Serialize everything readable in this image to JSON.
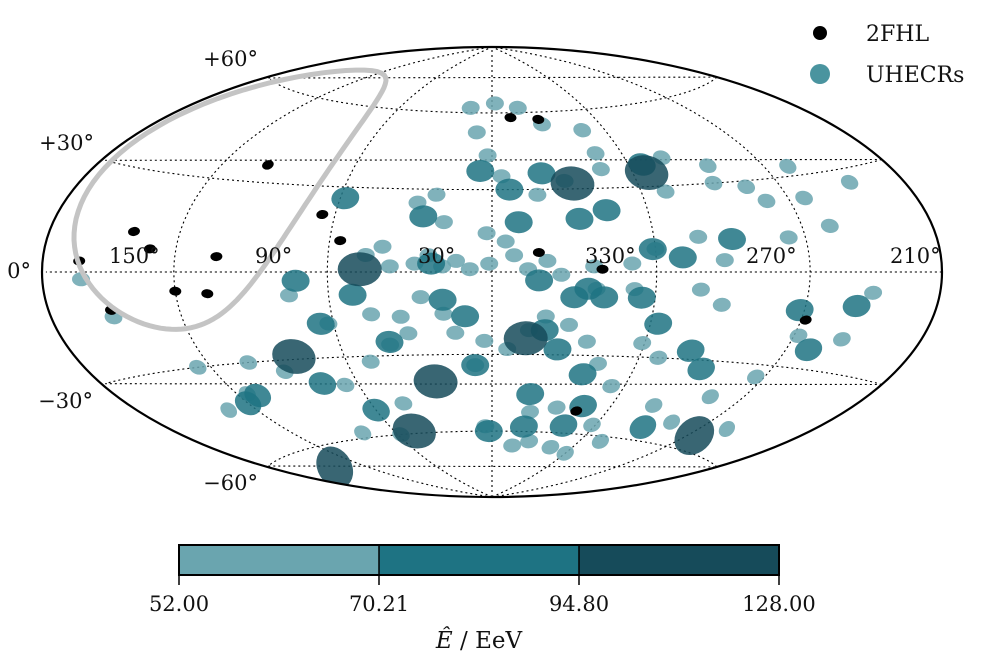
{
  "chart_data": {
    "type": "scatter",
    "projection": "hammer-aitoff",
    "coordinate_system": "galactic",
    "grid": true,
    "legend_placement": "top-right",
    "legend": [
      {
        "label": "2FHL",
        "color": "#000000"
      },
      {
        "label": "UHECRs",
        "color": "#4a949f"
      }
    ],
    "latitude_ticks": [
      "+60°",
      "+30°",
      "0°",
      "−30°",
      "−60°"
    ],
    "longitude_ticks": [
      "150°",
      "90°",
      "30°",
      "330°",
      "270°",
      "210°"
    ],
    "colorbar": {
      "label_main": "Ê",
      "label_unit": "/ EeV",
      "boundaries": [
        52.0,
        70.21,
        94.8,
        128.0
      ],
      "tick_labels": [
        "52.00",
        "70.21",
        "94.80",
        "128.00"
      ],
      "colors": [
        "#6aa5af",
        "#1e7383",
        "#164b5a"
      ]
    },
    "exposure_contour_color": "#c4c4c4",
    "series": [
      {
        "name": "2FHL",
        "color": "#000000",
        "points": [
          [
            140,
            12
          ],
          [
            99,
            36
          ],
          [
            65,
            20
          ],
          [
            56,
            11
          ],
          [
            103,
            5
          ],
          [
            131,
            7
          ],
          [
            162,
            3
          ],
          [
            120,
            -6
          ],
          [
            107,
            -7
          ],
          [
            150,
            -11
          ],
          [
            349,
            58
          ],
          [
            333,
            57
          ],
          [
            343,
            7
          ],
          [
            320,
            1
          ],
          [
            238,
            -15
          ],
          [
            316,
            -51
          ]
        ]
      },
      {
        "name": "UHECRs",
        "color": "#4a949f",
        "points": [
          [
            14,
            62,
            1
          ],
          [
            358,
            64,
            1
          ],
          [
            343,
            62,
            1
          ],
          [
            332,
            55,
            1
          ],
          [
            312,
            52,
            1
          ],
          [
            8,
            52,
            1
          ],
          [
            2,
            43,
            1
          ],
          [
            356,
            35,
            1
          ],
          [
            312,
            43,
            1
          ],
          [
            283,
            40,
            1
          ],
          [
            265,
            36,
            1
          ],
          [
            255,
            28,
            1
          ],
          [
            268,
            30,
            1
          ],
          [
            290,
            28,
            1
          ],
          [
            313,
            37,
            1
          ],
          [
            330,
            33,
            1
          ],
          [
            342,
            28,
            1
          ],
          [
            22,
            28,
            1
          ],
          [
            29,
            25,
            1
          ],
          [
            18,
            18,
            1
          ],
          [
            2,
            14,
            1
          ],
          [
            355,
            11,
            1
          ],
          [
            352,
            6,
            1
          ],
          [
            13,
            4,
            1
          ],
          [
            23,
            6,
            1
          ],
          [
            40,
            9,
            1
          ],
          [
            46,
            6,
            1
          ],
          [
            37,
            2,
            1
          ],
          [
            28,
            3,
            1
          ],
          [
            18,
            2,
            1
          ],
          [
            8,
            1,
            1
          ],
          [
            1,
            3,
            1
          ],
          [
            347,
            1,
            1
          ],
          [
            340,
            4,
            1
          ],
          [
            335,
            -1,
            1
          ],
          [
            323,
            2,
            1
          ],
          [
            322,
            -6,
            1
          ],
          [
            309,
            3,
            1
          ],
          [
            308,
            -6,
            1
          ],
          [
            300,
            8,
            1
          ],
          [
            283,
            12,
            1
          ],
          [
            274,
            4,
            1
          ],
          [
            283,
            -6,
            1
          ],
          [
            274,
            -11,
            1
          ],
          [
            247,
            11,
            1
          ],
          [
            228,
            14,
            1
          ],
          [
            218,
            -20,
            1
          ],
          [
            212,
            -6,
            1
          ],
          [
            207,
            26,
            1
          ],
          [
            229,
            33,
            1
          ],
          [
            233,
            23,
            1
          ],
          [
            250,
            23,
            1
          ],
          [
            45,
            -15,
            1
          ],
          [
            62,
            -18,
            1
          ],
          [
            75,
            -8,
            1
          ],
          [
            89,
            -34,
            1
          ],
          [
            102,
            -30,
            1
          ],
          [
            115,
            -40,
            1
          ],
          [
            126,
            -30,
            1
          ],
          [
            134,
            -44,
            1
          ],
          [
            66,
            -40,
            1
          ],
          [
            50,
            -32,
            1
          ],
          [
            40,
            -26,
            1
          ],
          [
            34,
            -16,
            1
          ],
          [
            32,
            -22,
            1
          ],
          [
            26,
            -9,
            1
          ],
          [
            18,
            -15,
            1
          ],
          [
            14,
            -22,
            1
          ],
          [
            7,
            -34,
            1
          ],
          [
            3,
            -25,
            1
          ],
          [
            354,
            -28,
            1
          ],
          [
            346,
            -21,
            1
          ],
          [
            340,
            -16,
            1
          ],
          [
            331,
            -19,
            1
          ],
          [
            323,
            -25,
            1
          ],
          [
            316,
            -33,
            1
          ],
          [
            306,
            -41,
            1
          ],
          [
            301,
            -25,
            1
          ],
          [
            292,
            -30,
            1
          ],
          [
            279,
            -47,
            1
          ],
          [
            256,
            -42,
            1
          ],
          [
            244,
            -34,
            1
          ],
          [
            238,
            -20,
            1
          ],
          [
            225,
            -51,
            1
          ],
          [
            260,
            -52,
            1
          ],
          [
            302,
            -56,
            1
          ],
          [
            327,
            -50,
            1
          ],
          [
            340,
            -52,
            1
          ],
          [
            4,
            -58,
            1
          ],
          [
            345,
            -66,
            1
          ],
          [
            334,
            -64,
            1
          ],
          [
            316,
            -66,
            1
          ],
          [
            300,
            -68,
            1
          ],
          [
            286,
            -62,
            1
          ],
          [
            58,
            -60,
            1
          ],
          [
            80,
            -58,
            1
          ],
          [
            150,
            -13,
            1
          ],
          [
            161,
            -2,
            1
          ],
          [
            44,
            -48,
            1
          ],
          [
            5,
            37,
            2
          ],
          [
            353,
            30,
            2
          ],
          [
            339,
            36,
            2
          ],
          [
            350,
            18,
            2
          ],
          [
            327,
            19,
            2
          ],
          [
            316,
            22,
            2
          ],
          [
            294,
            38,
            2
          ],
          [
            290,
            5,
            2
          ],
          [
            58,
            26,
            2
          ],
          [
            26,
            20,
            2
          ],
          [
            22,
            3,
            2
          ],
          [
            343,
            -3,
            2
          ],
          [
            330,
            -9,
            2
          ],
          [
            325,
            -6,
            2
          ],
          [
            319,
            -9,
            2
          ],
          [
            305,
            -9,
            2
          ],
          [
            297,
            -18,
            2
          ],
          [
            280,
            -27,
            2
          ],
          [
            271,
            -33,
            2
          ],
          [
            242,
            -12,
            2
          ],
          [
            230,
            -24,
            2
          ],
          [
            218,
            -10,
            2
          ],
          [
            10,
            -16,
            2
          ],
          [
            18,
            -10,
            2
          ],
          [
            7,
            -34,
            2
          ],
          [
            334,
            -28,
            2
          ],
          [
            321,
            -37,
            2
          ],
          [
            314,
            -49,
            2
          ],
          [
            2,
            -60,
            2
          ],
          [
            341,
            -58,
            2
          ],
          [
            318,
            -57,
            2
          ],
          [
            272,
            -55,
            2
          ],
          [
            60,
            -50,
            2
          ],
          [
            76,
            -39,
            2
          ],
          [
            65,
            -18,
            2
          ],
          [
            51,
            -8,
            2
          ],
          [
            72,
            -3,
            2
          ],
          [
            120,
            -43,
            2
          ],
          [
            111,
            -41,
            2
          ],
          [
            342,
            -45,
            2
          ],
          [
            340,
            -21,
            2
          ],
          [
            301,
            8,
            2
          ],
          [
            270,
            11,
            2
          ],
          [
            40,
            -25,
            2
          ],
          [
            327,
            32,
            3
          ],
          [
            294,
            35,
            3
          ],
          [
            48,
            1,
            3
          ],
          [
            25,
            -40,
            3
          ],
          [
            347,
            -24,
            3
          ],
          [
            81,
            -29,
            3
          ],
          [
            48,
            -59,
            3
          ],
          [
            236,
            -55,
            3
          ],
          [
            143,
            -67,
            3
          ]
        ]
      }
    ]
  }
}
